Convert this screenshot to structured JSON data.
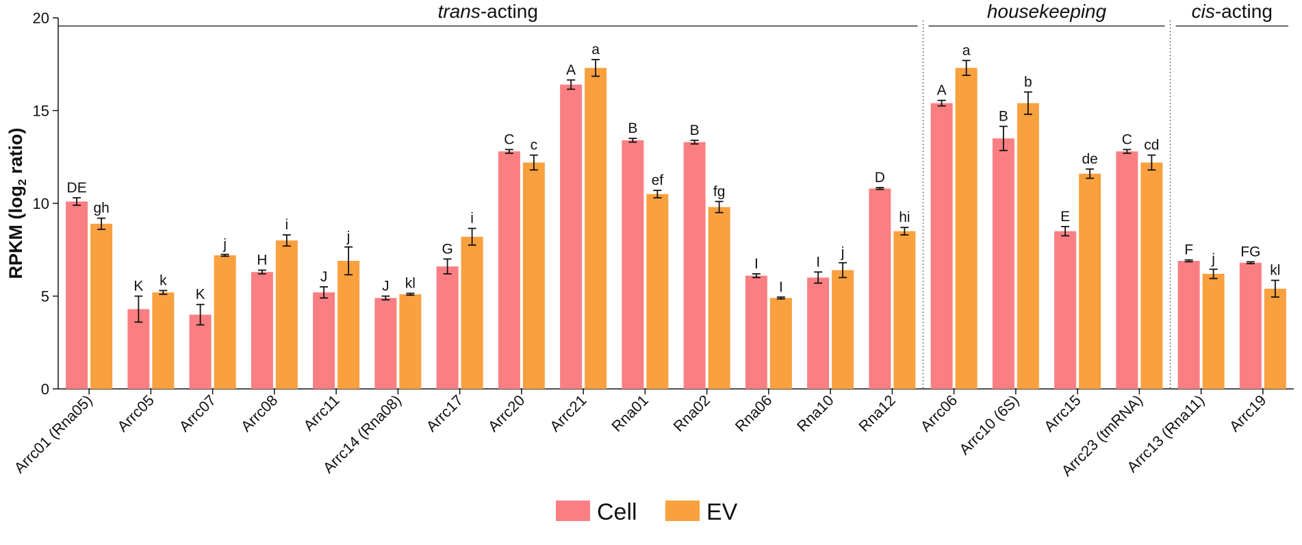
{
  "chart_data": {
    "type": "bar",
    "title": "",
    "xlabel": "",
    "ylabel_main": "RPKM (log",
    "ylabel_sub": "2",
    "ylabel_tail": " ratio)",
    "ylim": [
      0,
      20
    ],
    "yticks": [
      "0",
      "5",
      "10",
      "15",
      "20"
    ],
    "ytick_values": [
      0,
      5,
      10,
      15,
      20
    ],
    "colors": {
      "Cell": "#fa7f83",
      "EV": "#f9a03f"
    },
    "categories": [
      "Arrc01 (Rna05)",
      "Arrc05",
      "Arrc07",
      "Arrc08",
      "Arrc11",
      "Arrc14 (Rna08)",
      "Arrc17",
      "Arrc20",
      "Arrc21",
      "Rna01",
      "Rna02",
      "Rna06",
      "Rna10",
      "Rna12",
      "Arrc06",
      "Arrc10 (6S)",
      "Arrc15",
      "Arrc23 (tmRNA)",
      "Arrc13 (Rna11)",
      "Arrc19"
    ],
    "series": [
      {
        "name": "Cell",
        "values": [
          10.1,
          4.3,
          4.0,
          6.3,
          5.2,
          4.9,
          6.6,
          12.8,
          16.4,
          13.4,
          13.3,
          6.1,
          6.0,
          10.8,
          15.4,
          13.5,
          8.5,
          12.8,
          6.9,
          6.8
        ],
        "errors": [
          0.2,
          0.7,
          0.55,
          0.1,
          0.3,
          0.1,
          0.4,
          0.1,
          0.25,
          0.1,
          0.1,
          0.1,
          0.3,
          0.05,
          0.15,
          0.65,
          0.25,
          0.1,
          0.05,
          0.05
        ],
        "sig": [
          "DE",
          "K",
          "K",
          "H",
          "J",
          "J",
          "G",
          "C",
          "A",
          "B",
          "B",
          "I",
          "I",
          "D",
          "A",
          "B",
          "E",
          "C",
          "F",
          "FG"
        ]
      },
      {
        "name": "EV",
        "values": [
          8.9,
          5.2,
          7.2,
          8.0,
          6.9,
          5.1,
          8.2,
          12.2,
          17.3,
          10.5,
          9.8,
          4.9,
          6.4,
          8.5,
          17.3,
          15.4,
          11.6,
          12.2,
          6.2,
          5.4
        ],
        "errors": [
          0.3,
          0.1,
          0.05,
          0.3,
          0.75,
          0.05,
          0.45,
          0.4,
          0.45,
          0.2,
          0.3,
          0.05,
          0.4,
          0.2,
          0.4,
          0.6,
          0.25,
          0.4,
          0.25,
          0.45
        ],
        "sig": [
          "gh",
          "k",
          "j",
          "i",
          "j",
          "kl",
          "i",
          "c",
          "a",
          "ef",
          "fg",
          "I",
          "j",
          "hi",
          "a",
          "b",
          "de",
          "cd",
          "j",
          "kl"
        ]
      }
    ],
    "groups": [
      {
        "prefix_italic": "trans",
        "suffix": "-acting",
        "start": 0,
        "end": 13
      },
      {
        "prefix_italic": "housekeeping",
        "suffix": "",
        "start": 14,
        "end": 17
      },
      {
        "prefix_italic": "cis",
        "suffix": "-acting",
        "start": 18,
        "end": 19
      }
    ],
    "legend": [
      "Cell",
      "EV"
    ],
    "legend_position": "bottom-center"
  }
}
